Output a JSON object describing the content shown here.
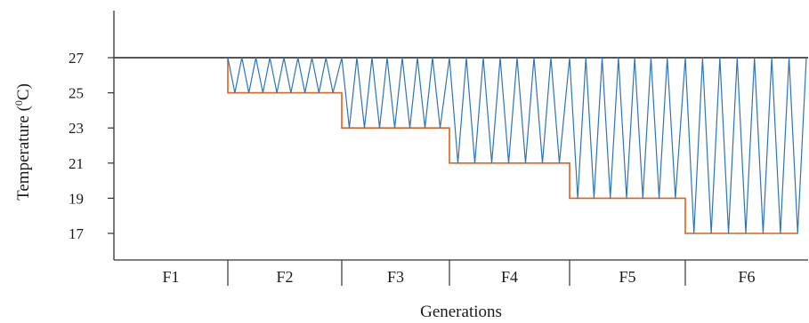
{
  "chart_data": {
    "type": "line",
    "xlabel": "Generations",
    "ylabel_main": "Temperature (",
    "ylabel_sup": "0",
    "ylabel_end": "C)",
    "ylim": [
      15,
      30
    ],
    "yticks": [
      27,
      25,
      23,
      21,
      19,
      17
    ],
    "generations": [
      {
        "label": "F1",
        "min_temp": 27,
        "cycles": 0
      },
      {
        "label": "F2",
        "min_temp": 25,
        "cycles": 8
      },
      {
        "label": "F3",
        "min_temp": 23,
        "cycles": 7
      },
      {
        "label": "F4",
        "min_temp": 21,
        "cycles": 7
      },
      {
        "label": "F5",
        "min_temp": 19,
        "cycles": 7
      },
      {
        "label": "F6",
        "min_temp": 17,
        "cycles": 7
      }
    ],
    "reference_temp": 27,
    "colors": {
      "fluctuating": "#2e75b6",
      "minimum": "#e0601c",
      "reference": "#555555",
      "axis": "#333333"
    },
    "grid": false,
    "legend": "none"
  }
}
